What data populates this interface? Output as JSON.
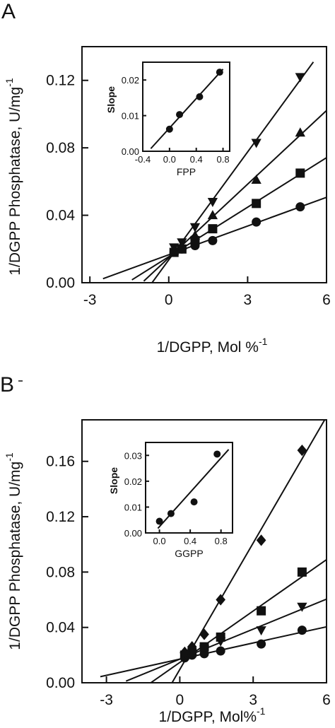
{
  "chart_data": [
    {
      "type": "scatter",
      "panel": "A",
      "xlabel": "1/DGPP, Mol %",
      "xlabel_sup": "-1",
      "ylabel": "1/DGPP Phosphatase, U/mg",
      "ylabel_sup": "-1",
      "xlim": [
        -3.3,
        6
      ],
      "ylim": [
        0,
        0.14
      ],
      "xticks": [
        -3,
        0,
        3,
        6
      ],
      "yticks": [
        0,
        0.04,
        0.08,
        0.12
      ],
      "xtick_labels": [
        "-3",
        "0",
        "3",
        "6"
      ],
      "ytick_labels": [
        "0.00",
        "0.04",
        "0.08",
        "0.12"
      ],
      "grid": false,
      "series": [
        {
          "marker": "circle",
          "x": [
            0.2,
            0.5,
            1.0,
            1.67,
            3.33,
            5.0
          ],
          "y": [
            0.018,
            0.02,
            0.022,
            0.025,
            0.036,
            0.045
          ],
          "line_x": [
            -2.5,
            6.0
          ]
        },
        {
          "marker": "square",
          "x": [
            0.2,
            0.5,
            1.0,
            1.67,
            3.33,
            5.0
          ],
          "y": [
            0.018,
            0.02,
            0.025,
            0.032,
            0.047,
            0.065
          ],
          "line_x": [
            -1.4,
            6.0
          ]
        },
        {
          "marker": "triangle-up",
          "x": [
            0.2,
            0.5,
            1.0,
            1.67,
            3.33,
            5.0
          ],
          "y": [
            0.019,
            0.022,
            0.028,
            0.04,
            0.061,
            0.089
          ],
          "line_x": [
            -0.95,
            6.0
          ]
        },
        {
          "marker": "triangle-down",
          "x": [
            0.2,
            0.5,
            1.0,
            1.67,
            3.33,
            5.0
          ],
          "y": [
            0.021,
            0.024,
            0.033,
            0.048,
            0.083,
            0.122
          ],
          "line_x": [
            -0.65,
            5.5
          ]
        }
      ],
      "inset": {
        "xlabel": "FPP",
        "ylabel": "Slope",
        "xlim": [
          -0.4,
          0.9
        ],
        "ylim": [
          0,
          0.025
        ],
        "xticks": [
          -0.4,
          0.0,
          0.4,
          0.8
        ],
        "yticks": [
          0,
          0.01,
          0.02
        ],
        "xtick_labels": [
          "-0.4",
          "0.0",
          "0.4",
          "0.8"
        ],
        "ytick_labels": [
          "0.00",
          "0.01",
          "0.02"
        ],
        "x": [
          0.0,
          0.15,
          0.45,
          0.75
        ],
        "y": [
          0.0062,
          0.0103,
          0.0153,
          0.0222
        ],
        "line_x": [
          -0.28,
          0.8
        ]
      }
    },
    {
      "type": "scatter",
      "panel": "B",
      "xlabel": "1/DGPP, Mol%",
      "xlabel_sup": "-1",
      "ylabel": "1/DGPP Phosphatase, U/mg",
      "ylabel_sup": "-1",
      "xlim": [
        -4,
        6
      ],
      "ylim": [
        0,
        0.19
      ],
      "xticks": [
        -3,
        0,
        3,
        6
      ],
      "yticks": [
        0,
        0.04,
        0.08,
        0.12,
        0.16
      ],
      "xtick_labels": [
        "-3",
        "0",
        "3",
        "6"
      ],
      "ytick_labels": [
        "0.00",
        "0.04",
        "0.08",
        "0.12",
        "0.16"
      ],
      "grid": false,
      "series": [
        {
          "marker": "circle",
          "x": [
            0.2,
            0.5,
            1.0,
            1.67,
            3.33,
            5.0
          ],
          "y": [
            0.018,
            0.02,
            0.021,
            0.023,
            0.028,
            0.038
          ],
          "line_x": [
            -3.25,
            6.0
          ]
        },
        {
          "marker": "triangle-down",
          "x": [
            0.2,
            0.5,
            1.0,
            1.67,
            3.33,
            5.0
          ],
          "y": [
            0.019,
            0.021,
            0.024,
            0.03,
            0.038,
            0.055
          ],
          "line_x": [
            -2.2,
            6.0
          ]
        },
        {
          "marker": "square",
          "x": [
            0.2,
            0.5,
            1.0,
            1.67,
            3.33,
            5.0
          ],
          "y": [
            0.02,
            0.022,
            0.026,
            0.033,
            0.052,
            0.08
          ],
          "line_x": [
            -1.8,
            6.0
          ]
        },
        {
          "marker": "diamond",
          "x": [
            0.2,
            0.5,
            1.0,
            1.67,
            3.33,
            5.0
          ],
          "y": [
            0.022,
            0.026,
            0.035,
            0.06,
            0.103,
            0.168
          ],
          "line_x": [
            -0.55,
            6.0
          ]
        }
      ],
      "inset": {
        "xlabel": "GGPP",
        "ylabel": "Slope",
        "xlim": [
          -0.18,
          0.95
        ],
        "ylim": [
          0,
          0.035
        ],
        "xticks": [
          0.0,
          0.4,
          0.8
        ],
        "yticks": [
          0,
          0.01,
          0.02,
          0.03
        ],
        "xtick_labels": [
          "0.0",
          "0.4",
          "0.8"
        ],
        "ytick_labels": [
          "0.00",
          "0.01",
          "0.02",
          "0.03"
        ],
        "x": [
          0.0,
          0.15,
          0.45,
          0.75
        ],
        "y": [
          0.0045,
          0.0075,
          0.012,
          0.0305
        ],
        "line_x": [
          -0.02,
          0.9
        ]
      }
    }
  ]
}
